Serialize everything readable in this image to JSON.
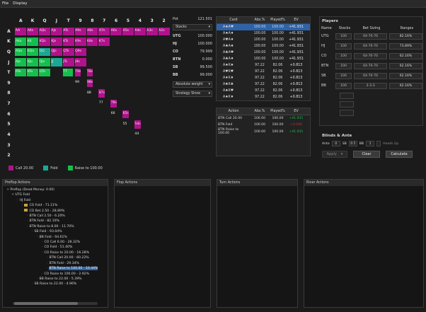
{
  "menu": [
    "File",
    "Display"
  ],
  "matrix": {
    "ranks": [
      "A",
      "K",
      "Q",
      "J",
      "T",
      "9",
      "8",
      "7",
      "6",
      "5",
      "4",
      "3",
      "2"
    ],
    "cells": [
      [
        "AA",
        "AKs",
        "AQs",
        "AJs",
        "ATs",
        "A9s",
        "A8s",
        "A7s",
        "A6s",
        "A5s",
        "A4s",
        "A3s",
        "A2s"
      ],
      [
        "AKo",
        "KK",
        "KQs",
        "KJs",
        "KTs",
        "K9s",
        "K8s",
        "K7s",
        "",
        "",
        "",
        "",
        ""
      ],
      [
        "AQo",
        "KQo",
        "QQ",
        "QJs",
        "QTs",
        "Q9s",
        "",
        "",
        "",
        "",
        "",
        "",
        ""
      ],
      [
        "AJo",
        "KJo",
        "QJo",
        "JJ",
        "JTs",
        "J9s",
        "",
        "",
        "",
        "",
        "",
        "",
        ""
      ],
      [
        "ATo",
        "KTo",
        "QTo",
        "",
        "TT",
        "T9s",
        "T8s",
        "",
        "",
        "",
        "",
        "",
        ""
      ],
      [
        "",
        "",
        "",
        "",
        "",
        "99",
        "98s",
        "",
        "",
        "",
        "",
        "",
        ""
      ],
      [
        "",
        "",
        "",
        "",
        "",
        "",
        "88",
        "87s",
        "",
        "",
        "",
        "",
        ""
      ],
      [
        "",
        "",
        "",
        "",
        "",
        "",
        "",
        "77",
        "76s",
        "",
        "",
        "",
        ""
      ],
      [
        "",
        "",
        "",
        "",
        "",
        "",
        "",
        "",
        "66",
        "65s",
        "",
        "",
        ""
      ],
      [
        "",
        "",
        "",
        "",
        "",
        "",
        "",
        "",
        "",
        "55",
        "54s",
        "",
        ""
      ],
      [
        "",
        "",
        "",
        "",
        "",
        "",
        "",
        "",
        "",
        "",
        "44",
        "",
        ""
      ],
      [
        "",
        "",
        "",
        "",
        "",
        "",
        "",
        "",
        "",
        "",
        "",
        "",
        ""
      ],
      [
        "",
        "",
        "",
        "",
        "",
        "",
        "",
        "",
        "",
        "",
        "",
        "",
        ""
      ]
    ]
  },
  "legend": {
    "call": "Call 20.00",
    "fold": "Fold",
    "raise": "Raise to 100.00"
  },
  "colors": {
    "call": "#b0128c",
    "fold": "#1aa893",
    "raise": "#13c04c",
    "selected": "#2e63a8"
  },
  "info": {
    "pot_label": "Pot",
    "pot": "121.501",
    "stacks_dd": "Stacks",
    "rows": [
      {
        "pos": "UTG",
        "val": "100.000"
      },
      {
        "pos": "HJ",
        "val": "100.000"
      },
      {
        "pos": "CO",
        "val": "79.999"
      },
      {
        "pos": "BTN",
        "val": "0.000"
      },
      {
        "pos": "SB",
        "val": "99.500"
      },
      {
        "pos": "BB",
        "val": "99.000"
      }
    ],
    "weight_dd": "Absolute weight",
    "strategy_dd": "Strategy Show"
  },
  "card_table": {
    "headers": [
      "Card",
      "Abs.%",
      "Played%",
      "EV"
    ],
    "rows": [
      {
        "card": "A♠A♥",
        "abs": "100.00",
        "played": "100.00",
        "ev": "+41.931",
        "sel": true
      },
      {
        "card": "A♠A♦",
        "abs": "100.00",
        "played": "100.00",
        "ev": "+41.931"
      },
      {
        "card": "A♥A♦",
        "abs": "100.00",
        "played": "100.00",
        "ev": "+41.931"
      },
      {
        "card": "A♣A♠",
        "abs": "100.00",
        "played": "100.00",
        "ev": "+41.931"
      },
      {
        "card": "A♣A♥",
        "abs": "100.00",
        "played": "100.00",
        "ev": "+41.931"
      },
      {
        "card": "A♣A♦",
        "abs": "100.00",
        "played": "100.00",
        "ev": "+41.931"
      },
      {
        "card": "A♠K♠",
        "abs": "97.22",
        "played": "82.06",
        "ev": "+0.813"
      },
      {
        "card": "A♥K♥",
        "abs": "97.22",
        "played": "82.06",
        "ev": "+0.813"
      },
      {
        "card": "A♦K♦",
        "abs": "97.22",
        "played": "82.06",
        "ev": "+0.813"
      },
      {
        "card": "A♣K♣",
        "abs": "97.22",
        "played": "82.06",
        "ev": "+0.813"
      },
      {
        "card": "A♠K♥",
        "abs": "97.22",
        "played": "82.06",
        "ev": "+0.813"
      },
      {
        "card": "A♠K♦",
        "abs": "97.22",
        "played": "82.06",
        "ev": "+0.813"
      }
    ]
  },
  "action_table": {
    "headers": [
      "Action",
      "Abs.%",
      "Played%",
      "EV"
    ],
    "rows": [
      {
        "name": "BTN Call 20.00",
        "abs": "100.00",
        "played": "100.00",
        "ev": "+41.931",
        "c": "#13c04c"
      },
      {
        "name": "BTN Fold",
        "abs": "100.00",
        "played": "100.00",
        "ev": "+0.000",
        "c": "#c03030"
      },
      {
        "name": "BTN Raise to 100.00",
        "abs": "100.00",
        "played": "100.00",
        "ev": "+41.931",
        "c": "#13c04c"
      }
    ]
  },
  "players": {
    "title": "Players",
    "headers": [
      "Name",
      "Stacks",
      "Bet Sizing",
      "Ranges"
    ],
    "rows": [
      {
        "name": "UTG",
        "stack": "100",
        "sizing": "64-70-70",
        "range": "82.16%"
      },
      {
        "name": "HJ",
        "stack": "100",
        "sizing": "64-70-70",
        "range": "73.89%"
      },
      {
        "name": "CO",
        "stack": "100",
        "sizing": "64-70-70",
        "range": "62.16%"
      },
      {
        "name": "BTN",
        "stack": "100",
        "sizing": "64-70-70",
        "range": "62.16%"
      },
      {
        "name": "SB",
        "stack": "100",
        "sizing": "64-70-70",
        "range": "62.16%"
      },
      {
        "name": "BB",
        "stack": "100",
        "sizing": "3-3-3",
        "range": "62.16%"
      }
    ]
  },
  "blinds": {
    "title": "Blinds & Ante",
    "ante_label": "Ante",
    "ante": "0",
    "sb_label": "SB",
    "sb": "0.5",
    "bb_label": "BB",
    "bb": "1",
    "headsup": "Heads Up"
  },
  "buttons": {
    "apply": "Apply",
    "clear": "Clear",
    "calculate": "Calculate"
  },
  "panels": {
    "preflop": "Preflop Actions",
    "flop": "Flop Actions",
    "turn": "Turn Actions",
    "river": "River Actions"
  },
  "tree": [
    {
      "d": 0,
      "t": "Preflop (Dead Money: 0.00)",
      "f": false
    },
    {
      "d": 1,
      "t": "UTG Fold",
      "f": false
    },
    {
      "d": 2,
      "t": "HJ Fold",
      "f": false
    },
    {
      "d": 3,
      "t": "CO Fold - 71.11%",
      "f": true
    },
    {
      "d": 3,
      "t": "CO Bet 2.50 - 28.89%",
      "f": true
    },
    {
      "d": 4,
      "t": "BTN Call 2.50 - 6.20%",
      "f": false
    },
    {
      "d": 4,
      "t": "BTN Fold - 82.10%",
      "f": false
    },
    {
      "d": 4,
      "t": "BTN Raise to 8.00 - 11.70%",
      "f": false
    },
    {
      "d": 5,
      "t": "SB Fold - 93.04%",
      "f": false
    },
    {
      "d": 6,
      "t": "BB Fold - 94.61%",
      "f": false
    },
    {
      "d": 7,
      "t": "CO Call 6.00 - 28.32%",
      "f": false
    },
    {
      "d": 7,
      "t": "CO Fold - 51.40%",
      "f": false
    },
    {
      "d": 7,
      "t": "CO Raise to 20.00 - 16.28%",
      "f": false
    },
    {
      "d": 8,
      "t": "BTN Call 20.00 - 60.22%",
      "f": false
    },
    {
      "d": 8,
      "t": "BTN Fold - 29.34%",
      "f": false
    },
    {
      "d": 8,
      "t": "BTN Raise to 100.00 - 10.44%",
      "f": false,
      "sel": true
    },
    {
      "d": 7,
      "t": "CO Raise to 100.00 - 2.92%",
      "f": false
    },
    {
      "d": 6,
      "t": "BB Raise to 22.00 - 5.39%",
      "f": false
    },
    {
      "d": 5,
      "t": "SB Raise to 22.00 - 4.96%",
      "f": false
    }
  ]
}
